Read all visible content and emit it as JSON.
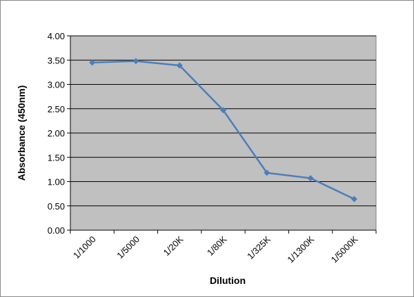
{
  "chart_data": {
    "type": "line",
    "x_label": "Dilution",
    "y_label": "Absorbance (450nm)",
    "categories": [
      "1/1000",
      "1/5000",
      "1/20K",
      "1/80K",
      "1/325K",
      "1/1300K",
      "1/5000K"
    ],
    "values": [
      3.45,
      3.48,
      3.39,
      2.47,
      1.18,
      1.07,
      0.64
    ],
    "color": "#4a7ebb",
    "ylim": [
      0,
      4
    ],
    "yticks": [
      {
        "value": 0,
        "label": "0.00"
      },
      {
        "value": 0.5,
        "label": "0.50"
      },
      {
        "value": 1,
        "label": "1.00"
      },
      {
        "value": 1.5,
        "label": "1.50"
      },
      {
        "value": 2,
        "label": "2.00"
      },
      {
        "value": 2.5,
        "label": "2.50"
      },
      {
        "value": 3,
        "label": "3.00"
      },
      {
        "value": 3.5,
        "label": "3.50"
      },
      {
        "value": 4,
        "label": "4.00"
      }
    ],
    "grid": true,
    "plot_background": "#c0c0c0"
  }
}
